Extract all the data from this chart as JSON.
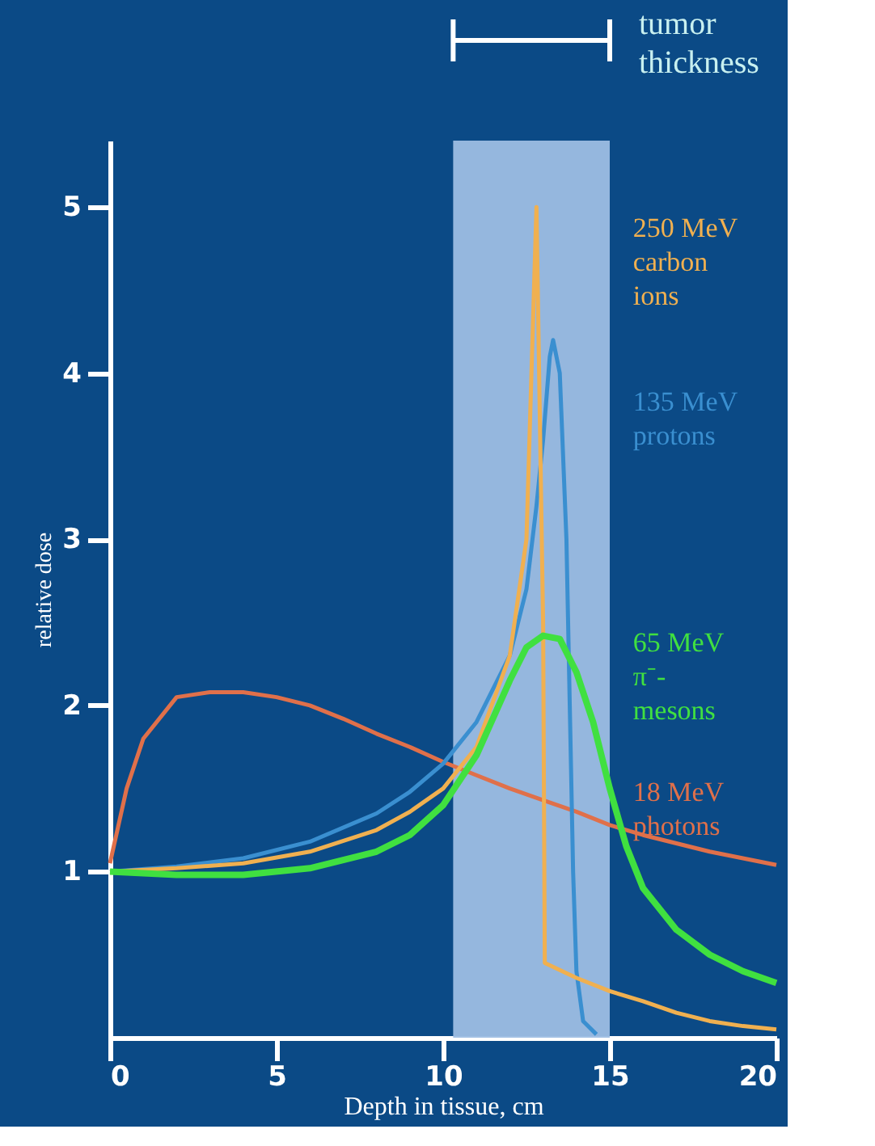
{
  "chart_data": {
    "type": "line",
    "xlabel": "Depth in tissue, cm",
    "ylabel": "relative dose",
    "xlim": [
      0,
      20
    ],
    "ylim": [
      0,
      5.4
    ],
    "xticks": [
      0,
      5,
      10,
      15,
      20
    ],
    "yticks": [
      1,
      2,
      3,
      4,
      5
    ],
    "grid": false,
    "marker": "none",
    "line_style": "solid",
    "bands": [
      {
        "axis": "x",
        "from": 10.3,
        "to": 15.0,
        "label": "tumor thickness",
        "color": "#9dbde3"
      }
    ],
    "series": [
      {
        "name": "18 MeV photons",
        "color": "#e0704a",
        "x": [
          0,
          0.5,
          1,
          2,
          3,
          4,
          5,
          6,
          7,
          8,
          9,
          10,
          11,
          12,
          13,
          14,
          15,
          16,
          17,
          18,
          19,
          20
        ],
        "values": [
          1.05,
          1.5,
          1.8,
          2.05,
          2.08,
          2.08,
          2.05,
          2.0,
          1.92,
          1.83,
          1.75,
          1.66,
          1.58,
          1.5,
          1.43,
          1.36,
          1.28,
          1.22,
          1.17,
          1.12,
          1.08,
          1.04
        ]
      },
      {
        "name": "135 MeV protons",
        "color": "#3a8fd0",
        "x": [
          0,
          2,
          4,
          6,
          8,
          9,
          10,
          11,
          12,
          12.5,
          12.8,
          13.0,
          13.2,
          13.3,
          13.5,
          13.7,
          13.8,
          13.9,
          14.0,
          14.2,
          14.6
        ],
        "values": [
          1.0,
          1.03,
          1.08,
          1.18,
          1.35,
          1.48,
          1.65,
          1.9,
          2.3,
          2.7,
          3.2,
          3.6,
          4.1,
          4.2,
          4.0,
          3.0,
          2.0,
          1.0,
          0.4,
          0.1,
          0.02
        ]
      },
      {
        "name": "250 MeV carbon ions",
        "color": "#f0b050",
        "x": [
          0,
          2,
          4,
          6,
          8,
          9,
          10,
          11,
          12,
          12.5,
          12.8,
          13.0,
          13.05,
          14,
          15,
          16,
          17,
          18,
          19,
          20
        ],
        "values": [
          1.0,
          1.02,
          1.05,
          1.12,
          1.25,
          1.36,
          1.5,
          1.75,
          2.3,
          3.0,
          5.0,
          2.5,
          0.45,
          0.36,
          0.28,
          0.22,
          0.15,
          0.1,
          0.07,
          0.05
        ]
      },
      {
        "name": "65 MeV π⁻- mesons",
        "color": "#40e040",
        "x": [
          0,
          2,
          4,
          6,
          8,
          9,
          10,
          11,
          12,
          12.5,
          13,
          13.5,
          14,
          14.5,
          15,
          15.5,
          16,
          17,
          18,
          19,
          20
        ],
        "values": [
          1.0,
          0.98,
          0.98,
          1.02,
          1.12,
          1.22,
          1.4,
          1.7,
          2.15,
          2.35,
          2.42,
          2.4,
          2.2,
          1.9,
          1.5,
          1.15,
          0.9,
          0.65,
          0.5,
          0.4,
          0.33
        ]
      }
    ]
  }
}
